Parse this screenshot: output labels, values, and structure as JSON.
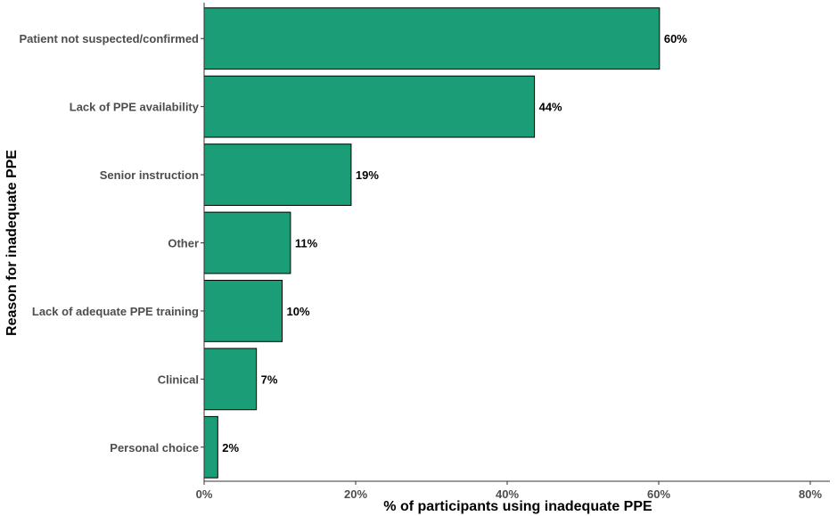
{
  "chart_data": {
    "type": "bar",
    "orientation": "horizontal",
    "categories": [
      "Patient not suspected/confirmed",
      "Lack of PPE availability",
      "Senior instruction",
      "Other",
      "Lack of adequate PPE training",
      "Clinical",
      "Personal choice"
    ],
    "values": [
      60.1,
      43.6,
      19.4,
      11.4,
      10.3,
      6.9,
      1.8
    ],
    "value_labels": [
      "60%",
      "44%",
      "19%",
      "11%",
      "10%",
      "7%",
      "2%"
    ],
    "xlabel": "% of participants using inadequate PPE",
    "ylabel": "Reason for inadequate PPE",
    "xlim": [
      0,
      80
    ],
    "xticks": [
      0,
      20,
      40,
      60,
      80
    ],
    "xtick_labels": [
      "0%",
      "20%",
      "40%",
      "60%",
      "80%"
    ],
    "bar_color": "#1b9e77",
    "bar_stroke": "#000000",
    "grid": false
  }
}
